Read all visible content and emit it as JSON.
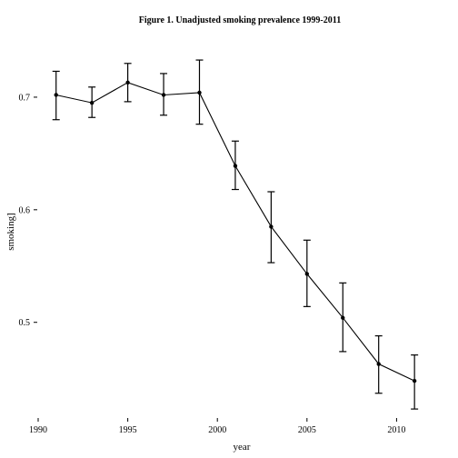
{
  "chart_data": {
    "type": "line",
    "title": "Figure 1. Unadjusted smoking prevalence 1999-2011",
    "xlabel": "year",
    "ylabel": "smoking]",
    "xlim": [
      1990,
      2011.5
    ],
    "ylim": [
      0.415,
      0.75
    ],
    "x_ticks": [
      1990,
      1995,
      2000,
      2005,
      2010
    ],
    "y_ticks": [
      0.5,
      0.6,
      0.7
    ],
    "y_tick_labels": [
      "0.5",
      "0.6",
      "0.7"
    ],
    "grid": false,
    "series": [
      {
        "x": [
          1991,
          1993,
          1995,
          1997,
          1999,
          2001,
          2003,
          2005,
          2007,
          2009,
          2011
        ],
        "values": [
          0.702,
          0.695,
          0.713,
          0.702,
          0.704,
          0.639,
          0.585,
          0.543,
          0.504,
          0.463,
          0.448
        ],
        "lower": [
          0.68,
          0.682,
          0.696,
          0.684,
          0.676,
          0.618,
          0.553,
          0.514,
          0.474,
          0.437,
          0.423
        ],
        "upper": [
          0.723,
          0.709,
          0.73,
          0.721,
          0.733,
          0.661,
          0.616,
          0.573,
          0.535,
          0.488,
          0.471
        ]
      }
    ],
    "color": "#000000"
  }
}
